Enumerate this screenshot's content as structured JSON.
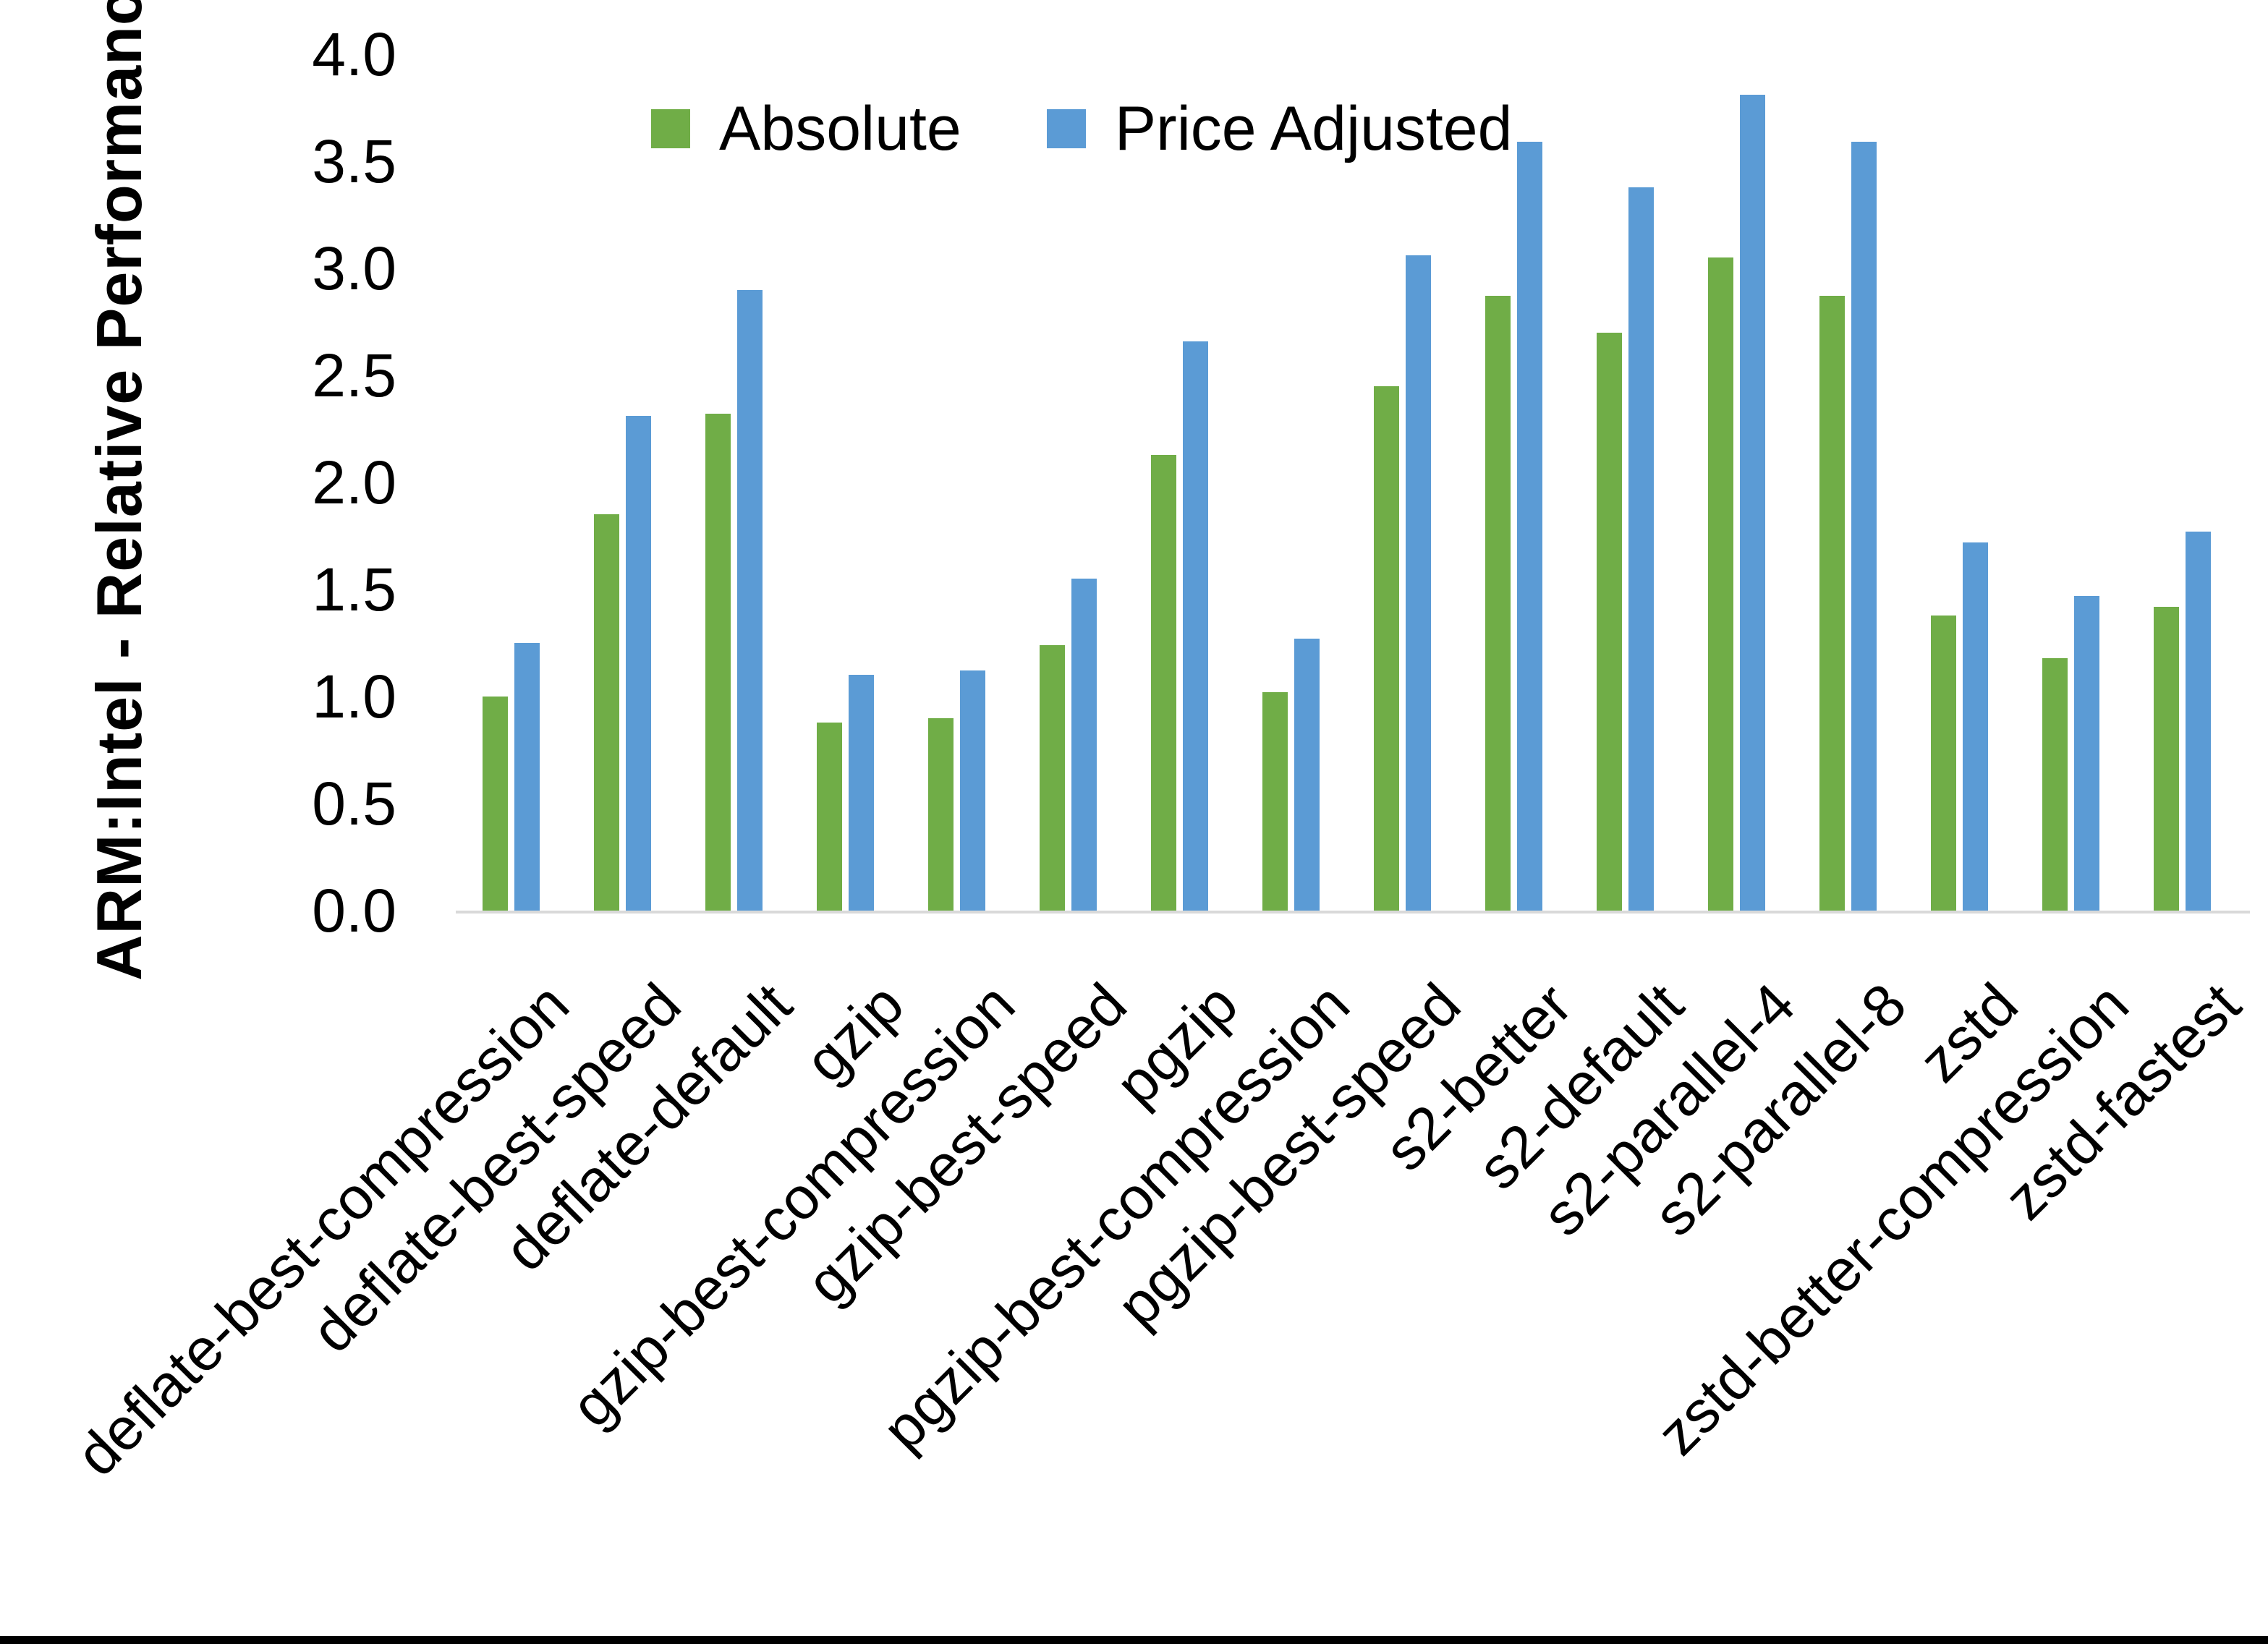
{
  "chart_data": {
    "type": "bar",
    "title": "",
    "ylabel": "ARM:Intel - Relative Performance",
    "xlabel": "",
    "ylim": [
      0.0,
      4.0
    ],
    "grid": false,
    "legend_position": "top-center",
    "ytick_labels": [
      "0.0",
      "0.5",
      "1.0",
      "1.5",
      "2.0",
      "2.5",
      "3.0",
      "3.5",
      "4.0"
    ],
    "categories": [
      "deflate-best-compression",
      "deflate-best-speed",
      "deflate-default",
      "gzip",
      "gzip-best-compression",
      "gzip-best-speed",
      "pgzip",
      "pgzip-best-compression",
      "pgzip-best-speed",
      "s2-better",
      "s2-default",
      "s2-parallel-4",
      "s2-parallel-8",
      "zstd",
      "zstd-better-compression",
      "zstd-fastest"
    ],
    "series": [
      {
        "name": "Absolute",
        "color": "#70AD47",
        "values": [
          1.0,
          1.85,
          2.32,
          0.88,
          0.9,
          1.24,
          2.13,
          1.02,
          2.45,
          2.87,
          2.7,
          3.05,
          2.87,
          1.38,
          1.18,
          1.42
        ]
      },
      {
        "name": "Price Adjusted",
        "color": "#5B9BD5",
        "values": [
          1.25,
          2.31,
          2.9,
          1.1,
          1.12,
          1.55,
          2.66,
          1.27,
          3.06,
          3.59,
          3.38,
          3.81,
          3.59,
          1.72,
          1.47,
          1.77
        ]
      }
    ],
    "axis_line_color": "#D9D9D9",
    "text_color": "#000000"
  }
}
